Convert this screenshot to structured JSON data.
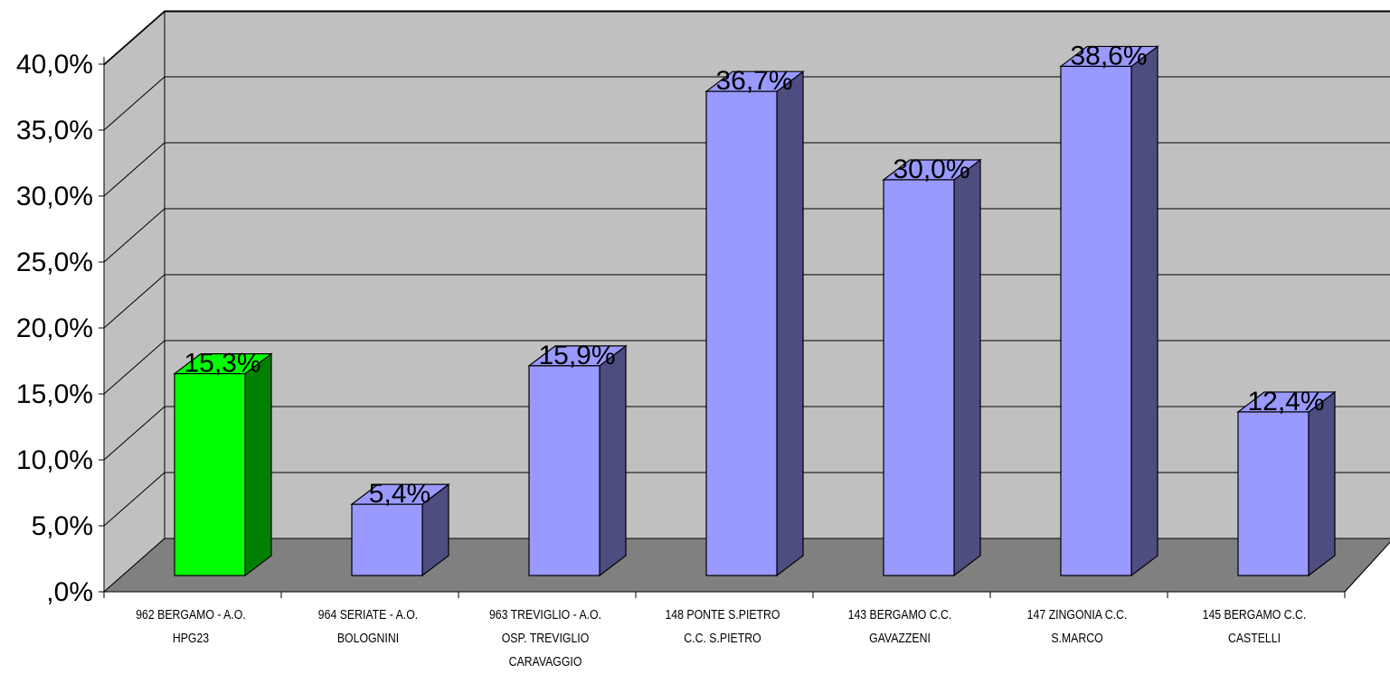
{
  "chart_data": {
    "type": "bar",
    "categories": [
      [
        "962 BERGAMO - A.O.",
        "HPG23"
      ],
      [
        "964 SERIATE - A.O.",
        "BOLOGNINI"
      ],
      [
        "963 TREVIGLIO - A.O.",
        "OSP. TREVIGLIO",
        "CARAVAGGIO"
      ],
      [
        "148 PONTE S.PIETRO",
        "C.C. S.PIETRO"
      ],
      [
        "143 BERGAMO C.C.",
        "GAVAZZENI"
      ],
      [
        "147 ZINGONIA C.C.",
        "S.MARCO"
      ],
      [
        "145 BERGAMO C.C.",
        "CASTELLI"
      ]
    ],
    "values": [
      15.3,
      5.4,
      15.9,
      36.7,
      30.0,
      38.6,
      12.4
    ],
    "value_labels": [
      "15,3%",
      "5,4%",
      "15,9%",
      "36,7%",
      "30,0%",
      "38,6%",
      "12,4%"
    ],
    "highlight_index": 0,
    "ylim": [
      0,
      40
    ],
    "yticks": [
      0,
      5,
      10,
      15,
      20,
      25,
      30,
      35,
      40
    ],
    "ytick_labels": [
      ",0%",
      "5,0%",
      "10,0%",
      "15,0%",
      "20,0%",
      "25,0%",
      "30,0%",
      "35,0%",
      "40,0%"
    ],
    "grid": true,
    "legend": "none",
    "title": "",
    "xlabel": "",
    "ylabel": "",
    "colors": {
      "wall": "#c0c0c0",
      "floor": "#808080",
      "bar_front": "#9999ff",
      "bar_side": "#4d4d80",
      "highlight_front": "#00ff00",
      "highlight_side": "#008000"
    }
  }
}
